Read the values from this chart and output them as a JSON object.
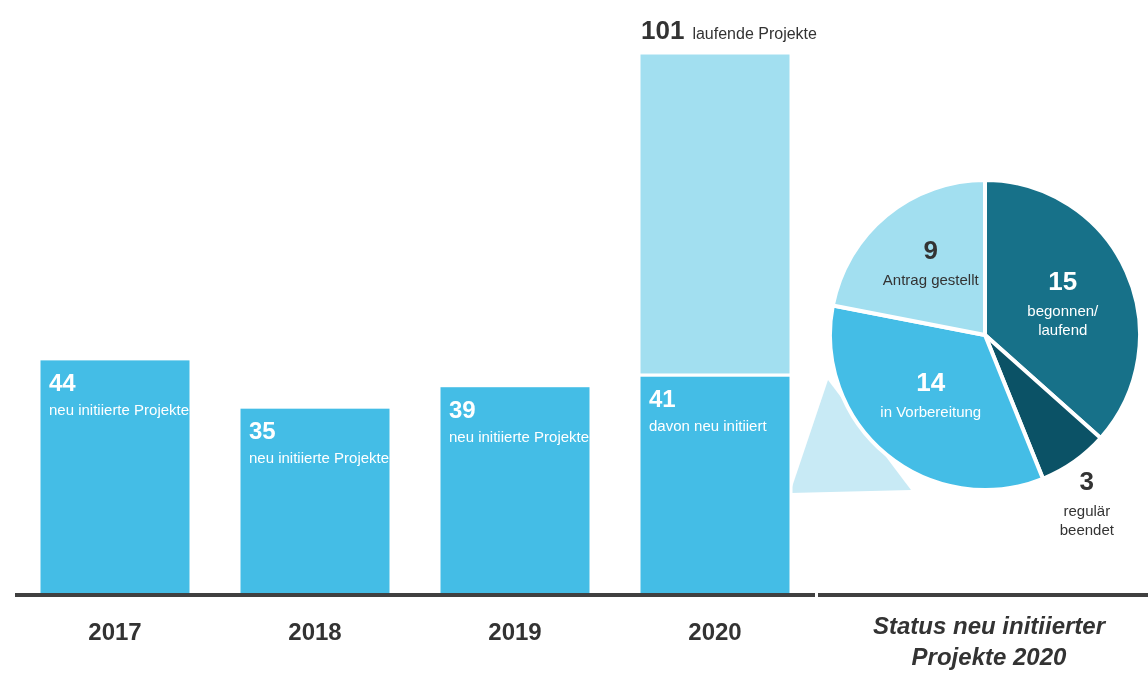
{
  "chart_data": [
    {
      "type": "bar",
      "stacked": true,
      "categories": [
        "2017",
        "2018",
        "2019",
        "2020"
      ],
      "series": [
        {
          "color": "#44bde6",
          "values": [
            44,
            35,
            39,
            41
          ],
          "value_labels": [
            "44\nneu initiierte Projekte",
            "35\nneu initiierte Projekte",
            "39\nneu initiierte Projekte",
            "41\ndavon neu initiiert"
          ]
        },
        {
          "color": "#a2dff0",
          "values": [
            null,
            null,
            null,
            60
          ]
        }
      ],
      "totals": [
        null,
        null,
        null,
        "101 laufende Projekte"
      ]
    },
    {
      "type": "pie",
      "title": "Status neu initiierter Projekte 2020",
      "categories": [
        "begonnen/\nlaufend",
        "regulär\nbeendet",
        "in Vorbereitung",
        "Antrag gestellt"
      ],
      "values": [
        15,
        3,
        14,
        9
      ],
      "colors": [
        "#177189",
        "#0b5266",
        "#44bde6",
        "#a2dff0"
      ],
      "data_labels": true
    }
  ]
}
